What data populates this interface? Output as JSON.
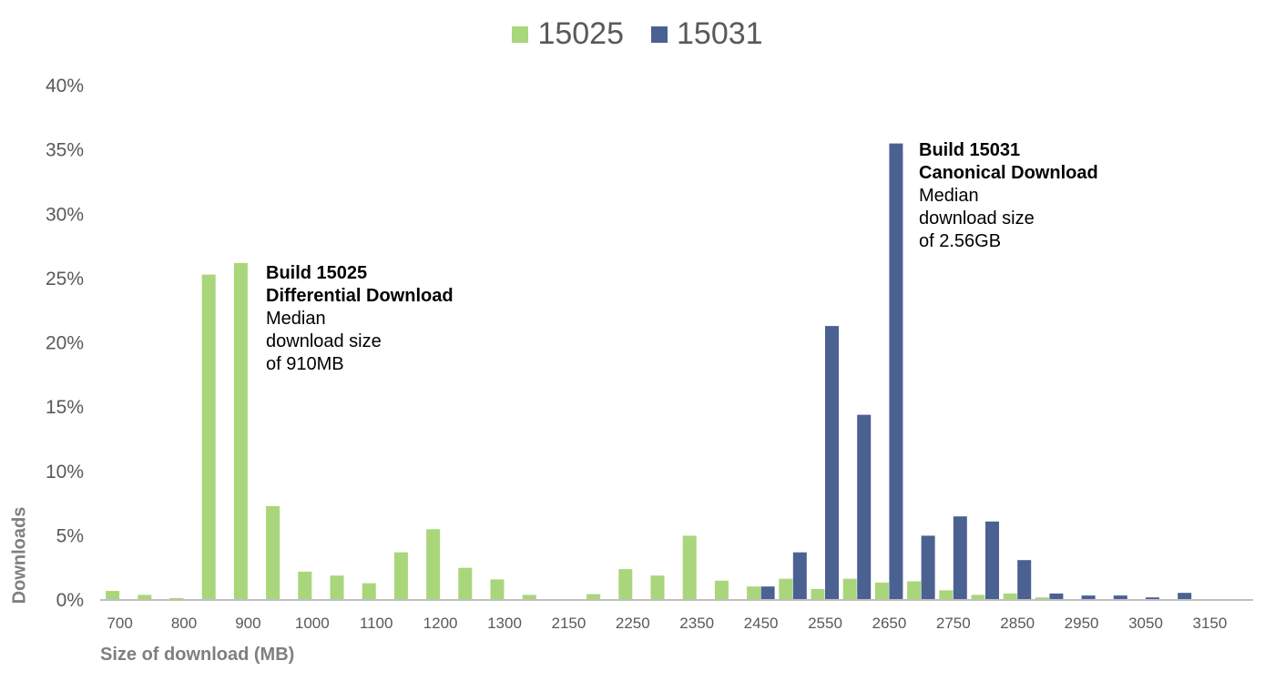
{
  "chart_data": {
    "type": "bar",
    "categories": [
      "700",
      "750",
      "800",
      "850",
      "900",
      "950",
      "1000",
      "1050",
      "1100",
      "1150",
      "1200",
      "1250",
      "1300",
      "2100",
      "2150",
      "2200",
      "2250",
      "2300",
      "2350",
      "2400",
      "2450",
      "2500",
      "2550",
      "2600",
      "2650",
      "2700",
      "2750",
      "2800",
      "2850",
      "2900",
      "2950",
      "3000",
      "3050",
      "3100",
      "3150"
    ],
    "tick_labels": [
      "700",
      "800",
      "900",
      "1000",
      "1100",
      "1200",
      "1300",
      "2150",
      "2250",
      "2350",
      "2450",
      "2550",
      "2650",
      "2750",
      "2850",
      "2950",
      "3050",
      "3150"
    ],
    "series": [
      {
        "name": "15025",
        "color": "#a9d67a",
        "values": [
          0.7,
          0.4,
          0.15,
          25.3,
          26.2,
          7.3,
          2.2,
          1.9,
          1.3,
          3.7,
          5.5,
          2.5,
          1.6,
          0.4,
          0,
          0.45,
          2.4,
          1.9,
          5.0,
          1.5,
          1.05,
          1.65,
          0.85,
          1.65,
          1.35,
          1.45,
          0.75,
          0.4,
          0.5,
          0.2,
          0,
          0,
          0,
          0,
          0
        ]
      },
      {
        "name": "15031",
        "color": "#4a6191",
        "values": [
          0,
          0,
          0,
          0,
          0,
          0,
          0,
          0,
          0,
          0,
          0,
          0,
          0,
          0,
          0,
          0,
          0,
          0,
          0,
          0,
          1.05,
          3.7,
          21.3,
          14.4,
          35.5,
          5.0,
          6.5,
          6.1,
          3.1,
          0.5,
          0.35,
          0.35,
          0.2,
          0.55,
          0
        ]
      }
    ],
    "y_ticks": [
      "0%",
      "5%",
      "10%",
      "15%",
      "20%",
      "25%",
      "30%",
      "35%",
      "40%"
    ],
    "ylim": [
      0,
      40
    ],
    "xlabel": "Size of download (MB)",
    "ylabel": "Downloads",
    "legend_position": "top-center",
    "grid": false,
    "annotations": [
      {
        "bold_lines": [
          "Build 15025",
          "Differential Download"
        ],
        "lines": [
          "Median",
          "download size",
          "of 910MB"
        ]
      },
      {
        "bold_lines": [
          "Build 15031",
          "Canonical Download"
        ],
        "lines": [
          "Median",
          "download size",
          "of 2.56GB"
        ]
      }
    ]
  }
}
